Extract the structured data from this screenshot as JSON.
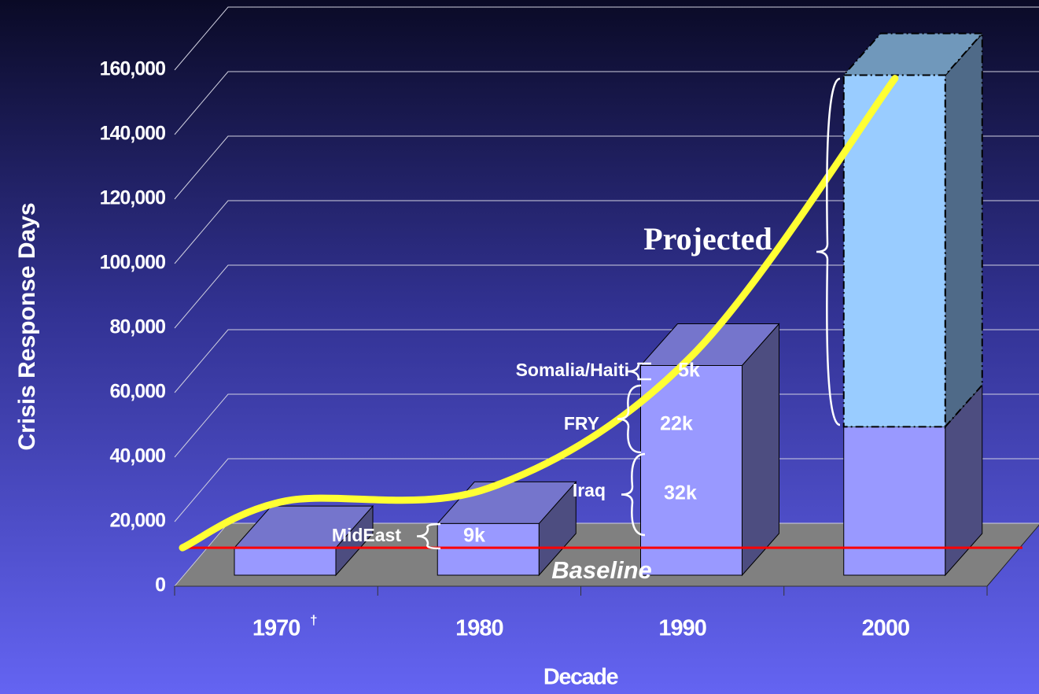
{
  "chart_data": {
    "type": "bar",
    "y_label": "Crisis Response Days",
    "x_label": "Decade",
    "categories": [
      "1970",
      "1980",
      "1990",
      "2000"
    ],
    "category_note": "†",
    "values": [
      8500,
      16000,
      65000,
      46000
    ],
    "projected": [
      null,
      null,
      null,
      109000
    ],
    "projected_label": "Projected",
    "trend": [
      23000,
      27000,
      68000,
      154000
    ],
    "trend_color": "#ffff33",
    "baseline": 8500,
    "baseline_label": "Baseline",
    "baseline_color": "#ff0000",
    "color": "#9999ff",
    "projected_color": "#99ccff",
    "breakdown": [
      {
        "name": "MidEast",
        "label": "9k"
      },
      {
        "name": "Iraq",
        "label": "32k"
      },
      {
        "name": "FRY",
        "label": "22k"
      },
      {
        "name": "Somalia/Haiti",
        "label": "5k"
      }
    ],
    "ylim": [
      0,
      160000
    ],
    "yticks": [
      0,
      {
        "value": 20000,
        "label": "20,000"
      },
      {
        "value": 40000,
        "label": "40,000"
      },
      {
        "value": 60000,
        "label": "60,000"
      },
      {
        "value": 80000,
        "label": "80,000"
      },
      {
        "value": 100000,
        "label": "100,000"
      },
      {
        "value": 120000,
        "label": "120,000"
      },
      {
        "value": 140000,
        "label": "140,000"
      },
      {
        "value": 160000,
        "label": "160,000"
      }
    ],
    "grid": true
  }
}
